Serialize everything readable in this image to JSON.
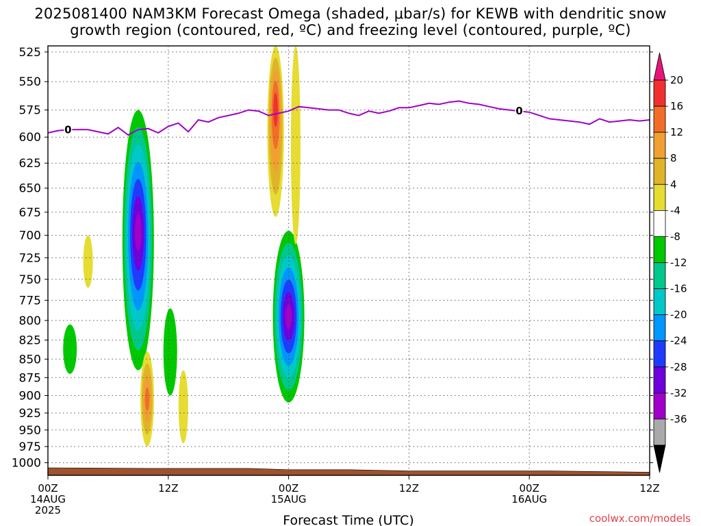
{
  "title_line1": "2025081400 NAM3KM Forecast Omega (shaded, μbar/s) for KEWB with dendritic snow",
  "title_line2": "growth region (contoured, red, ºC) and freezing level (contoured, purple, ºC)",
  "credit": "coolwx.com/models",
  "chart_data": {
    "type": "contour-timeheight",
    "xlabel": "Forecast Time (UTC)",
    "x_ticks": [
      {
        "hour": 0,
        "lines": [
          "00Z",
          "14AUG",
          "2025"
        ]
      },
      {
        "hour": 12,
        "lines": [
          "12Z"
        ]
      },
      {
        "hour": 24,
        "lines": [
          "00Z",
          "15AUG"
        ]
      },
      {
        "hour": 36,
        "lines": [
          "12Z"
        ]
      },
      {
        "hour": 48,
        "lines": [
          "00Z",
          "16AUG"
        ]
      },
      {
        "hour": 60,
        "lines": [
          "12Z"
        ]
      }
    ],
    "xlim": [
      0,
      60
    ],
    "y_ticks": [
      "525",
      "550",
      "575",
      "600",
      "625",
      "650",
      "675",
      "700",
      "725",
      "750",
      "775",
      "800",
      "825",
      "850",
      "875",
      "900",
      "925",
      "950",
      "975",
      "1000"
    ],
    "ylim": [
      1020,
      520
    ],
    "y_scale": "log-pressure",
    "grid": true,
    "colorbar": {
      "labels": [
        "20",
        "16",
        "12",
        "8",
        "4",
        "-4",
        "-8",
        "-12",
        "-16",
        "-20",
        "-24",
        "-28",
        "-32",
        "-36"
      ],
      "colors": [
        "#e8147a",
        "#f03030",
        "#f06e28",
        "#f0a030",
        "#e0b428",
        "#e6dc32",
        "#ffffff",
        "#00c800",
        "#00c88c",
        "#00c8c8",
        "#0096ff",
        "#1e3cff",
        "#6e00dc",
        "#a000c8",
        "#aaaaaa",
        "#000000"
      ]
    },
    "freezing_level": {
      "label": "0",
      "color": "#a000c8",
      "points": [
        [
          0,
          596
        ],
        [
          1,
          594
        ],
        [
          2,
          593
        ],
        [
          4,
          593
        ],
        [
          5,
          595
        ],
        [
          6,
          597
        ],
        [
          7,
          591
        ],
        [
          8,
          598
        ],
        [
          9,
          593
        ],
        [
          10,
          592
        ],
        [
          11,
          596
        ],
        [
          12,
          590
        ],
        [
          13,
          587
        ],
        [
          14,
          595
        ],
        [
          15,
          584
        ],
        [
          16,
          586
        ],
        [
          17,
          582
        ],
        [
          18,
          580
        ],
        [
          19,
          578
        ],
        [
          20,
          575
        ],
        [
          21,
          576
        ],
        [
          22,
          580
        ],
        [
          23,
          578
        ],
        [
          24,
          576
        ],
        [
          25,
          572
        ],
        [
          26,
          573
        ],
        [
          27,
          574
        ],
        [
          28,
          575
        ],
        [
          29,
          575
        ],
        [
          30,
          578
        ],
        [
          31,
          580
        ],
        [
          32,
          576
        ],
        [
          33,
          578
        ],
        [
          34,
          576
        ],
        [
          35,
          573
        ],
        [
          36,
          573
        ],
        [
          37,
          571
        ],
        [
          38,
          569
        ],
        [
          39,
          570
        ],
        [
          40,
          568
        ],
        [
          41,
          567
        ],
        [
          42,
          569
        ],
        [
          43,
          570
        ],
        [
          44,
          572
        ],
        [
          45,
          574
        ],
        [
          46,
          575
        ],
        [
          47,
          576
        ],
        [
          48,
          577
        ],
        [
          49,
          580
        ],
        [
          50,
          583
        ],
        [
          51,
          584
        ],
        [
          52,
          585
        ],
        [
          53,
          586
        ],
        [
          54,
          588
        ],
        [
          55,
          583
        ],
        [
          56,
          586
        ],
        [
          57,
          585
        ],
        [
          58,
          584
        ],
        [
          59,
          585
        ],
        [
          60,
          584
        ]
      ]
    },
    "omega_features": [
      {
        "hour": 9.0,
        "p_top": 575,
        "p_bottom": 865,
        "core_p": 695,
        "peak": -32,
        "sign": "upward"
      },
      {
        "hour": 24.0,
        "p_top": 695,
        "p_bottom": 910,
        "core_p": 795,
        "peak": -32,
        "sign": "upward"
      },
      {
        "hour": 2.2,
        "p_top": 805,
        "p_bottom": 870,
        "core_p": 835,
        "peak": -6,
        "sign": "upward"
      },
      {
        "hour": 12.2,
        "p_top": 785,
        "p_bottom": 900,
        "core_p": 830,
        "peak": -6,
        "sign": "upward"
      },
      {
        "hour": 22.7,
        "p_top": 520,
        "p_bottom": 680,
        "core_p": 570,
        "peak": 22,
        "sign": "downward"
      },
      {
        "hour": 24.7,
        "p_top": 520,
        "p_bottom": 710,
        "core_p": 600,
        "peak": 6,
        "sign": "downward"
      },
      {
        "hour": 9.9,
        "p_top": 840,
        "p_bottom": 975,
        "core_p": 905,
        "peak": 18,
        "sign": "downward"
      },
      {
        "hour": 13.5,
        "p_top": 865,
        "p_bottom": 970,
        "core_p": 915,
        "peak": 6,
        "sign": "downward"
      },
      {
        "hour": 4.0,
        "p_top": 700,
        "p_bottom": 760,
        "core_p": 730,
        "peak": 5,
        "sign": "downward"
      }
    ],
    "surface_pressure": [
      [
        0,
        1008
      ],
      [
        10,
        1009
      ],
      [
        20,
        1009
      ],
      [
        24,
        1011
      ],
      [
        30,
        1011
      ],
      [
        36,
        1013
      ],
      [
        50,
        1013
      ],
      [
        60,
        1015
      ]
    ]
  }
}
